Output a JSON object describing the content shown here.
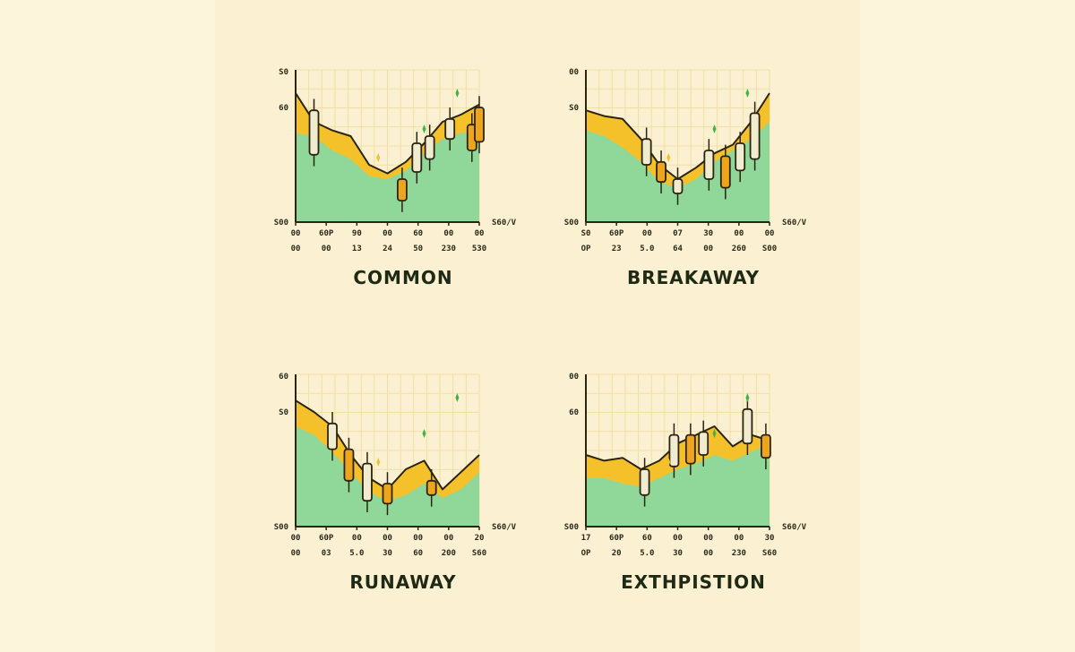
{
  "colors": {
    "green": "#8fd89a",
    "yellow": "#f5c12a",
    "outline": "#2a2410",
    "candle_up": "#f1ebcf",
    "candle_down": "#eea51d",
    "grid": "#f0dfa3",
    "spark": "#3fb24a"
  },
  "chart_data": [
    {
      "type": "area",
      "title": "COMMON",
      "y_ticks": [
        "S0",
        "60",
        "S00"
      ],
      "x_ticks_row1": [
        "00",
        "60P",
        "90",
        "00",
        "60",
        "00",
        "00"
      ],
      "x_ticks_row2": [
        "00",
        "00",
        "13",
        "24",
        "50",
        "230",
        "530"
      ],
      "y_axis_right_label": "S60/V",
      "x": [
        0,
        10,
        20,
        30,
        40,
        50,
        60,
        70,
        80,
        90,
        100
      ],
      "green_values": [
        62,
        60,
        50,
        44,
        32,
        30,
        36,
        48,
        58,
        62,
        64
      ],
      "yellow_values": [
        90,
        70,
        64,
        60,
        40,
        34,
        42,
        55,
        70,
        75,
        82
      ],
      "candles": [
        {
          "x": 10,
          "open": 78,
          "close": 47,
          "dir": "up"
        },
        {
          "x": 58,
          "open": 30,
          "close": 15,
          "dir": "down"
        },
        {
          "x": 66,
          "open": 55,
          "close": 35,
          "dir": "up"
        },
        {
          "x": 73,
          "open": 60,
          "close": 44,
          "dir": "up"
        },
        {
          "x": 84,
          "open": 72,
          "close": 58,
          "dir": "up"
        },
        {
          "x": 96,
          "open": 68,
          "close": 50,
          "dir": "down"
        },
        {
          "x": 100,
          "open": 80,
          "close": 56,
          "dir": "down"
        }
      ]
    },
    {
      "type": "area",
      "title": "BREAKAWAY",
      "y_ticks": [
        "00",
        "S0",
        "S00"
      ],
      "x_ticks_row1": [
        "S0",
        "60P",
        "00",
        "07",
        "30",
        "00",
        "00"
      ],
      "x_ticks_row2": [
        "OP",
        "23",
        "5.0",
        "64",
        "00",
        "260",
        "S00"
      ],
      "y_axis_right_label": "S60/V",
      "x": [
        0,
        10,
        20,
        30,
        40,
        50,
        60,
        70,
        80,
        90,
        100
      ],
      "green_values": [
        64,
        60,
        52,
        42,
        28,
        24,
        30,
        42,
        50,
        58,
        70
      ],
      "yellow_values": [
        78,
        74,
        72,
        58,
        40,
        30,
        38,
        48,
        54,
        70,
        90
      ],
      "candles": [
        {
          "x": 33,
          "open": 58,
          "close": 40,
          "dir": "up"
        },
        {
          "x": 41,
          "open": 42,
          "close": 28,
          "dir": "down"
        },
        {
          "x": 50,
          "open": 30,
          "close": 20,
          "dir": "up"
        },
        {
          "x": 67,
          "open": 50,
          "close": 30,
          "dir": "up"
        },
        {
          "x": 76,
          "open": 46,
          "close": 24,
          "dir": "down"
        },
        {
          "x": 84,
          "open": 55,
          "close": 36,
          "dir": "up"
        },
        {
          "x": 92,
          "open": 76,
          "close": 44,
          "dir": "up"
        }
      ]
    },
    {
      "type": "area",
      "title": "RUNAWAY",
      "y_ticks": [
        "60",
        "S0",
        "S00"
      ],
      "x_ticks_row1": [
        "00",
        "60P",
        "00",
        "00",
        "00",
        "00",
        "20"
      ],
      "x_ticks_row2": [
        "00",
        "03",
        "5.0",
        "30",
        "60",
        "200",
        "S60"
      ],
      "y_axis_right_label": "S60/V",
      "x": [
        0,
        10,
        20,
        30,
        40,
        50,
        60,
        70,
        80,
        90,
        100
      ],
      "green_values": [
        70,
        64,
        52,
        38,
        24,
        18,
        22,
        30,
        20,
        26,
        38
      ],
      "yellow_values": [
        88,
        80,
        70,
        50,
        34,
        26,
        40,
        46,
        26,
        38,
        50
      ],
      "candles": [
        {
          "x": 20,
          "open": 72,
          "close": 54,
          "dir": "up"
        },
        {
          "x": 29,
          "open": 54,
          "close": 32,
          "dir": "down"
        },
        {
          "x": 39,
          "open": 44,
          "close": 18,
          "dir": "up"
        },
        {
          "x": 50,
          "open": 30,
          "close": 16,
          "dir": "down"
        },
        {
          "x": 74,
          "open": 32,
          "close": 22,
          "dir": "down"
        }
      ]
    },
    {
      "type": "area",
      "title": "EXTHPISTION",
      "y_ticks": [
        "00",
        "60",
        "S00"
      ],
      "x_ticks_row1": [
        "17",
        "60P",
        "60",
        "00",
        "00",
        "00",
        "30"
      ],
      "x_ticks_row2": [
        "OP",
        "20",
        "5.0",
        "30",
        "00",
        "230",
        "S60"
      ],
      "y_axis_right_label": "S60/V",
      "x": [
        0,
        10,
        20,
        30,
        40,
        50,
        60,
        70,
        80,
        90,
        100
      ],
      "green_values": [
        34,
        34,
        30,
        28,
        34,
        40,
        44,
        50,
        46,
        52,
        58
      ],
      "yellow_values": [
        50,
        46,
        48,
        40,
        46,
        58,
        64,
        70,
        56,
        64,
        60
      ],
      "candles": [
        {
          "x": 32,
          "open": 40,
          "close": 22,
          "dir": "up"
        },
        {
          "x": 48,
          "open": 64,
          "close": 42,
          "dir": "up"
        },
        {
          "x": 57,
          "open": 64,
          "close": 44,
          "dir": "down"
        },
        {
          "x": 64,
          "open": 66,
          "close": 50,
          "dir": "up"
        },
        {
          "x": 88,
          "open": 82,
          "close": 58,
          "dir": "up"
        },
        {
          "x": 98,
          "open": 64,
          "close": 48,
          "dir": "down"
        }
      ]
    }
  ]
}
